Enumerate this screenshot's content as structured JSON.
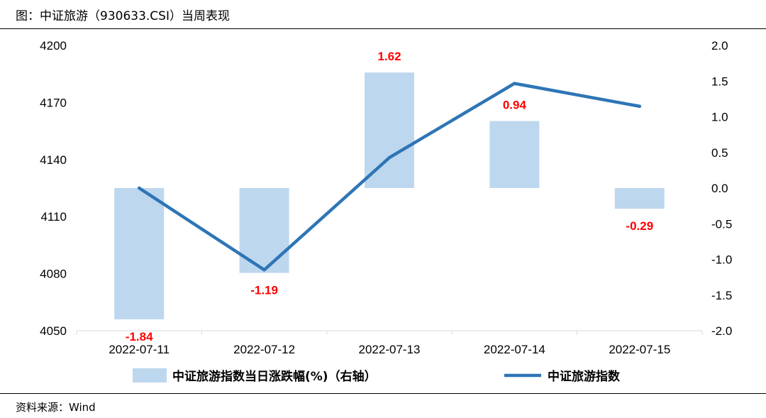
{
  "figure": {
    "title": "图：中证旅游（930633.CSI）当周表现",
    "source": "资料来源：Wind"
  },
  "colors": {
    "bar": "#bdd7ee",
    "line": "#2e75b6",
    "data_label": "#ff0000",
    "axis": "#d9d9d9"
  },
  "chart_data": {
    "type": "bar+line",
    "categories": [
      "2022-07-11",
      "2022-07-12",
      "2022-07-13",
      "2022-07-14",
      "2022-07-15"
    ],
    "series": [
      {
        "name": "中证旅游指数当日涨跌幅(%)（右轴）",
        "type": "bar",
        "axis": "right",
        "values": [
          -1.84,
          -1.19,
          1.62,
          0.94,
          -0.29
        ],
        "labels": [
          "-1.84",
          "-1.19",
          "1.62",
          "0.94",
          "-0.29"
        ]
      },
      {
        "name": "中证旅游指数",
        "type": "line",
        "axis": "left",
        "values": [
          4125,
          4082,
          4141,
          4180,
          4168
        ]
      }
    ],
    "y_left": {
      "range": [
        4050,
        4200
      ],
      "ticks": [
        "4200",
        "4170",
        "4140",
        "4110",
        "4080",
        "4050"
      ]
    },
    "y_right": {
      "range": [
        -2.0,
        2.0
      ],
      "ticks": [
        "2.0",
        "1.5",
        "1.0",
        "0.5",
        "0.0",
        "-0.5",
        "-1.0",
        "-1.5",
        "-2.0"
      ]
    },
    "legend": {
      "position": "bottom",
      "bar_label": "中证旅游指数当日涨跌幅(%)（右轴）",
      "line_label": "中证旅游指数"
    },
    "grid": false
  }
}
